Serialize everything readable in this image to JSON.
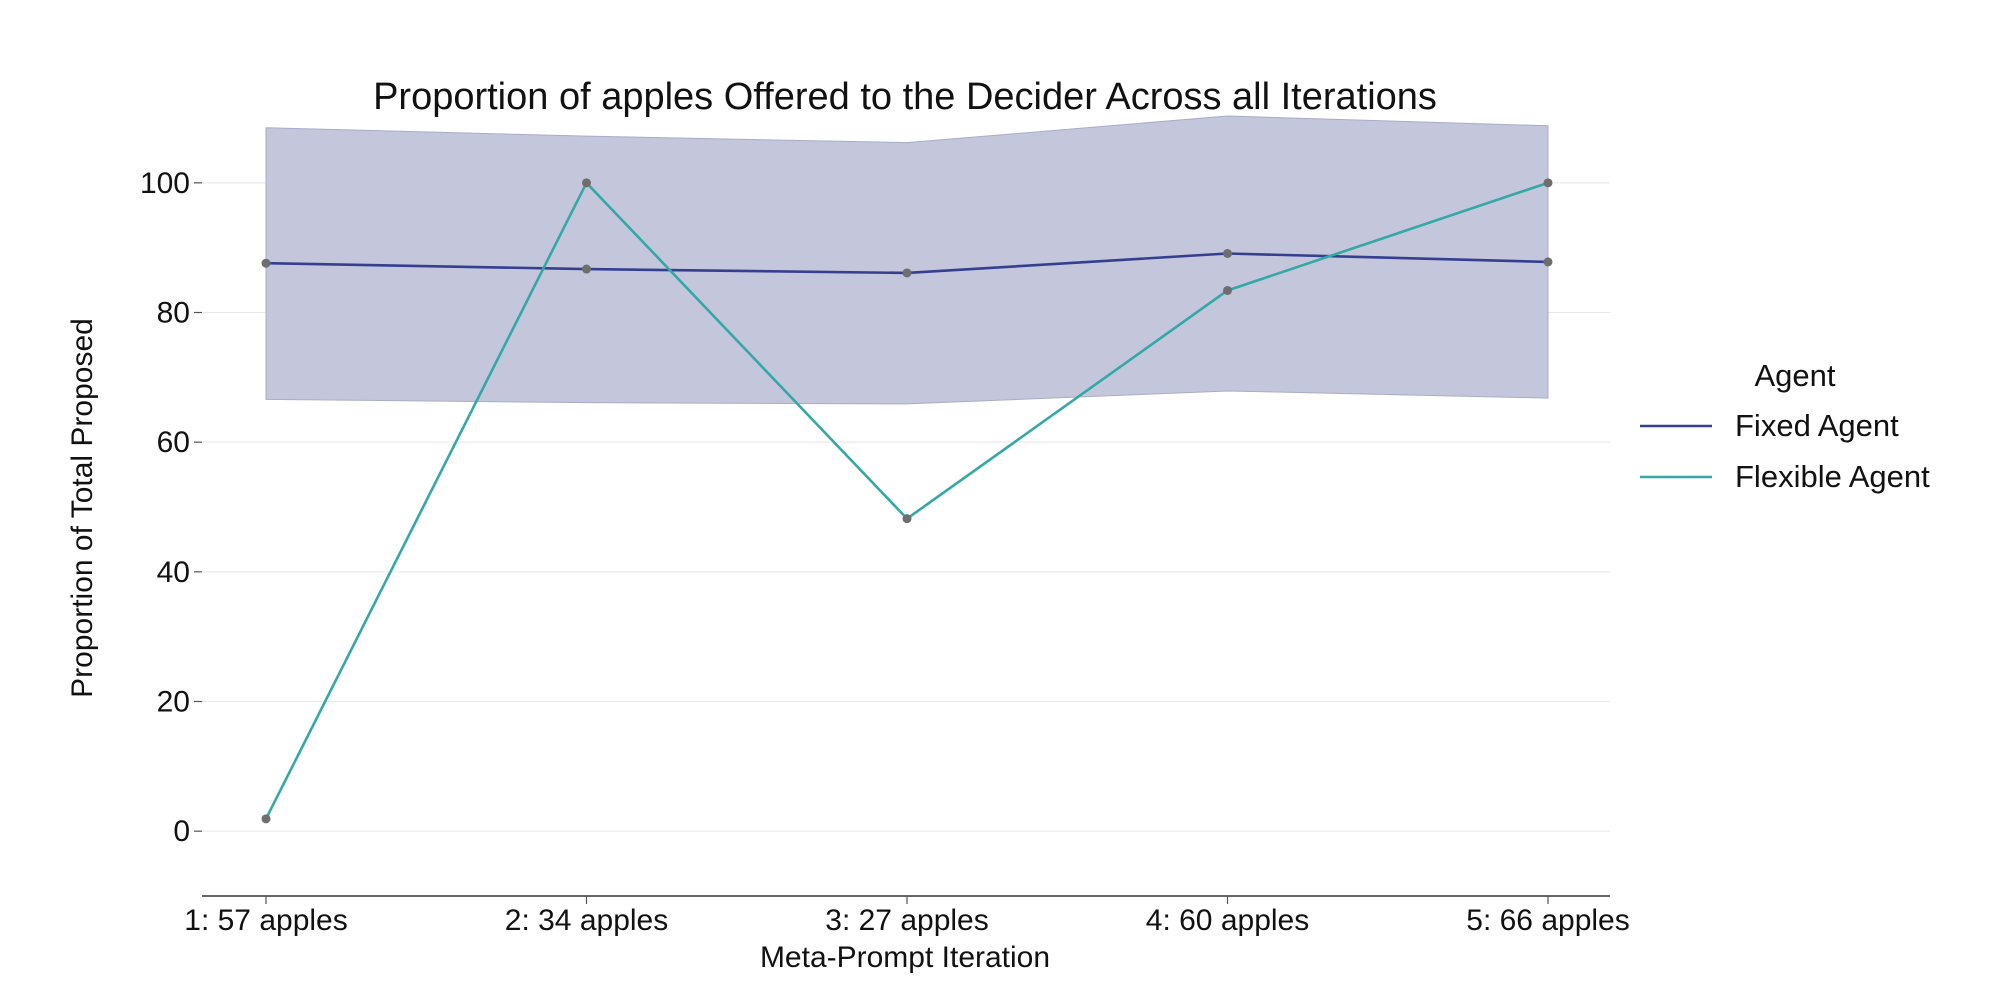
{
  "chart_data": {
    "type": "line",
    "title": "Proportion of apples Offered to the Decider Across all Iterations",
    "xlabel": "Meta-Prompt Iteration",
    "ylabel": "Proportion of Total Proposed",
    "categories": [
      "1: 57 apples",
      "2: 34 apples",
      "3: 27 apples",
      "4: 60 apples",
      "5: 66 apples"
    ],
    "ylim": [
      -10,
      110
    ],
    "yticks": [
      0,
      20,
      40,
      60,
      80,
      100
    ],
    "grid": true,
    "legend": {
      "title": "Agent",
      "position": "right"
    },
    "series": [
      {
        "name": "Fixed Agent",
        "color": "#353f8f",
        "values": [
          87.6,
          86.7,
          86.1,
          89.1,
          87.8
        ],
        "band": {
          "lower": [
            66.6,
            66.1,
            65.9,
            67.9,
            66.8
          ],
          "upper": [
            108.5,
            107.2,
            106.2,
            110.3,
            108.8
          ],
          "color": "#c4c6dc"
        }
      },
      {
        "name": "Flexible Agent",
        "color": "#33a8a6",
        "values": [
          1.9,
          100.0,
          48.2,
          83.4,
          100.0
        ]
      }
    ],
    "marker_color": "#6e6e6e"
  }
}
